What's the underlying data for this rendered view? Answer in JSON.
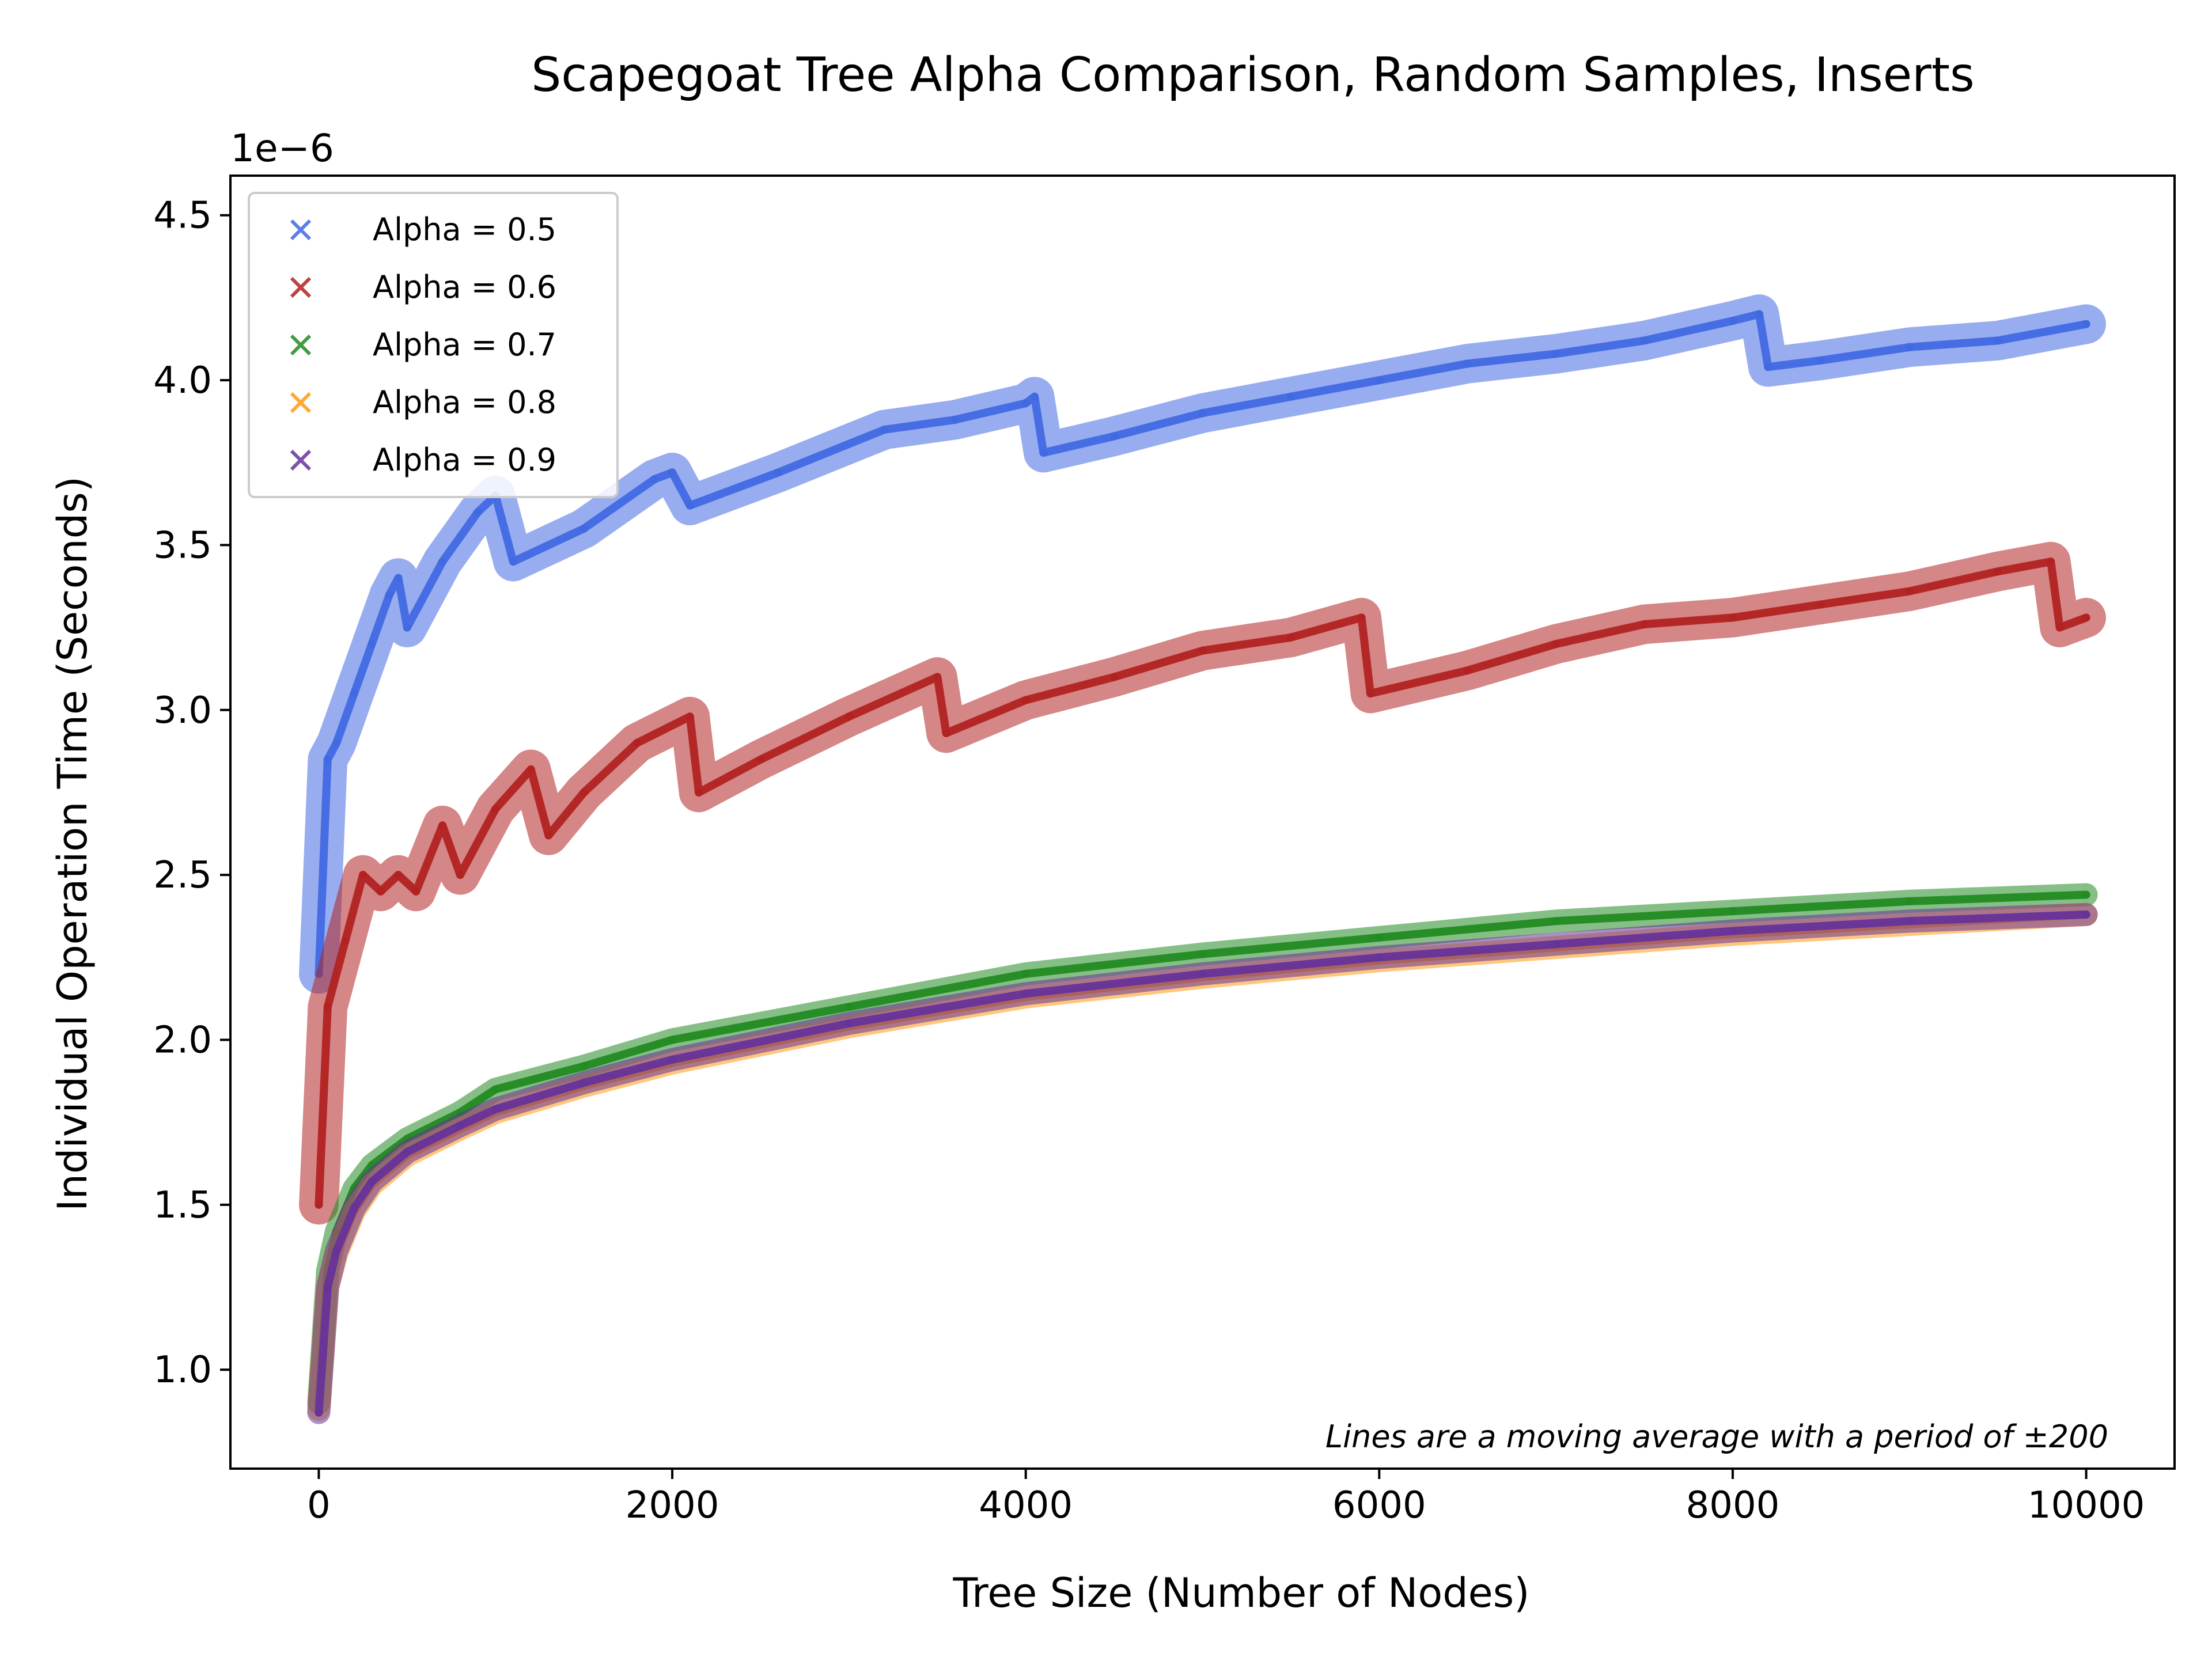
{
  "chart_data": {
    "type": "scatter",
    "title": "Scapegoat Tree Alpha Comparison, Random Samples, Inserts",
    "xlabel": "Tree Size (Number of Nodes)",
    "ylabel": "Individual Operation Time (Seconds)",
    "y_offset_label": "1e−6",
    "xlim": [
      -500,
      10500
    ],
    "ylim": [
      0.7,
      4.62
    ],
    "y_multiplier": 1e-06,
    "x_ticks": [
      0,
      2000,
      4000,
      6000,
      8000,
      10000
    ],
    "x_tick_labels": [
      "0",
      "2000",
      "4000",
      "6000",
      "8000",
      "10000"
    ],
    "y_ticks": [
      1.0,
      1.5,
      2.0,
      2.5,
      3.0,
      3.5,
      4.0,
      4.5
    ],
    "y_tick_labels": [
      "1.0",
      "1.5",
      "2.0",
      "2.5",
      "3.0",
      "3.5",
      "4.0",
      "4.5"
    ],
    "grid": false,
    "legend_position": "upper-left",
    "annotation": "Lines are a moving average with a period of ±200",
    "series": [
      {
        "name": "Alpha = 0.5",
        "color": "#4169e1",
        "x": [
          0,
          50,
          100,
          200,
          300,
          400,
          450,
          500,
          700,
          900,
          1000,
          1100,
          1500,
          1900,
          2000,
          2100,
          2600,
          3200,
          3600,
          4000,
          4050,
          4100,
          4500,
          5000,
          5500,
          6000,
          6500,
          7000,
          7500,
          8000,
          8150,
          8200,
          8500,
          9000,
          9500,
          10000
        ],
        "y": [
          2.2,
          2.85,
          2.9,
          3.05,
          3.2,
          3.35,
          3.4,
          3.25,
          3.45,
          3.6,
          3.65,
          3.45,
          3.55,
          3.7,
          3.72,
          3.62,
          3.72,
          3.85,
          3.88,
          3.93,
          3.95,
          3.78,
          3.83,
          3.9,
          3.95,
          4.0,
          4.05,
          4.08,
          4.12,
          4.18,
          4.2,
          4.04,
          4.06,
          4.1,
          4.12,
          4.17
        ]
      },
      {
        "name": "Alpha = 0.6",
        "color": "#b22222",
        "x": [
          0,
          50,
          150,
          250,
          350,
          450,
          550,
          700,
          800,
          1000,
          1200,
          1300,
          1500,
          1800,
          2100,
          2150,
          2500,
          3000,
          3500,
          3550,
          4000,
          4500,
          5000,
          5500,
          5900,
          5950,
          6500,
          7000,
          7500,
          8000,
          8500,
          9000,
          9500,
          9800,
          9850,
          10000
        ],
        "y": [
          1.5,
          2.1,
          2.3,
          2.5,
          2.45,
          2.5,
          2.45,
          2.65,
          2.5,
          2.7,
          2.82,
          2.62,
          2.75,
          2.9,
          2.98,
          2.75,
          2.85,
          2.98,
          3.1,
          2.93,
          3.03,
          3.1,
          3.18,
          3.22,
          3.28,
          3.05,
          3.12,
          3.2,
          3.26,
          3.28,
          3.32,
          3.36,
          3.42,
          3.45,
          3.25,
          3.28
        ]
      },
      {
        "name": "Alpha = 0.7",
        "color": "#228b22",
        "x": [
          0,
          50,
          100,
          200,
          300,
          500,
          800,
          1000,
          1500,
          2000,
          3000,
          4000,
          5000,
          6000,
          7000,
          8000,
          9000,
          10000
        ],
        "y": [
          0.9,
          1.3,
          1.42,
          1.55,
          1.62,
          1.7,
          1.78,
          1.85,
          1.92,
          2.0,
          2.1,
          2.2,
          2.26,
          2.31,
          2.36,
          2.39,
          2.42,
          2.44
        ]
      },
      {
        "name": "Alpha = 0.8",
        "color": "#ff9912",
        "x": [
          0,
          50,
          100,
          200,
          300,
          500,
          800,
          1000,
          1500,
          2000,
          3000,
          4000,
          5000,
          6000,
          7000,
          8000,
          9000,
          10000
        ],
        "y": [
          0.88,
          1.25,
          1.35,
          1.48,
          1.56,
          1.65,
          1.73,
          1.78,
          1.86,
          1.93,
          2.04,
          2.13,
          2.19,
          2.24,
          2.28,
          2.32,
          2.35,
          2.38
        ]
      },
      {
        "name": "Alpha = 0.9",
        "color": "#663399",
        "x": [
          0,
          50,
          100,
          200,
          300,
          500,
          800,
          1000,
          1500,
          2000,
          3000,
          4000,
          5000,
          6000,
          7000,
          8000,
          9000,
          10000
        ],
        "y": [
          0.87,
          1.25,
          1.36,
          1.49,
          1.57,
          1.66,
          1.74,
          1.79,
          1.87,
          1.94,
          2.05,
          2.14,
          2.2,
          2.25,
          2.29,
          2.33,
          2.36,
          2.38
        ]
      }
    ]
  }
}
